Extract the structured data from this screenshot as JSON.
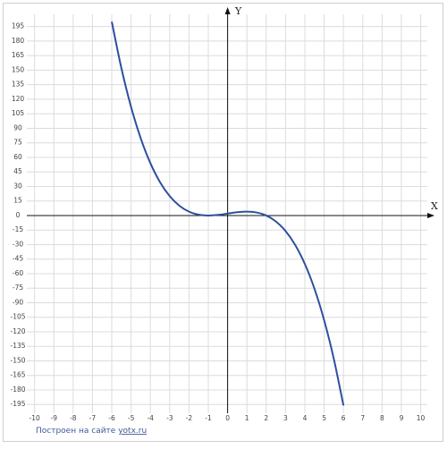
{
  "chart_data": {
    "type": "line",
    "x_label": "X",
    "y_label": "Y",
    "x": [
      -6,
      -5.5,
      -5,
      -4.5,
      -4,
      -3.5,
      -3,
      -2.5,
      -2,
      -1.5,
      -1,
      -0.5,
      0,
      0.5,
      1,
      1.5,
      2,
      2.5,
      3,
      3.5,
      4,
      4.5,
      5,
      5.5,
      6
    ],
    "values": [
      200,
      151.875,
      112,
      79.625,
      54,
      34.375,
      20,
      10.125,
      4,
      0.875,
      0,
      0.625,
      2,
      3.375,
      4,
      3.125,
      0,
      -6.125,
      -16,
      -30.375,
      -50,
      -75.625,
      -108,
      -147.875,
      -196
    ],
    "color": "#2e4fa0",
    "xlim": [
      -10.4,
      10.9
    ],
    "ylim": [
      -204,
      215
    ],
    "xticks": [
      -10,
      -9,
      -8,
      -7,
      -6,
      -5,
      -4,
      -3,
      -2,
      -1,
      0,
      1,
      2,
      3,
      4,
      5,
      6,
      7,
      8,
      9,
      10
    ],
    "yticks": [
      -195,
      -180,
      -165,
      -150,
      -135,
      -120,
      -105,
      -90,
      -75,
      -60,
      -45,
      -30,
      -15,
      0,
      15,
      30,
      45,
      60,
      75,
      90,
      105,
      120,
      135,
      150,
      165,
      180,
      195
    ],
    "grid": true
  },
  "footer": {
    "text": "Построен на сайте",
    "link": "yotx.ru"
  }
}
